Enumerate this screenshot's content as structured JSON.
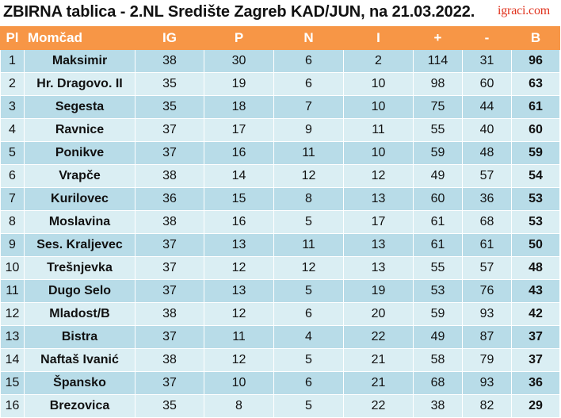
{
  "title": "ZBIRNA tablica - 2.NL Središte Zagreb KAD/JUN, na 21.03.2022.",
  "logo": "igraci.com",
  "columns": [
    "Pl",
    "Momčad",
    "IG",
    "P",
    "N",
    "I",
    "+",
    "-",
    "B"
  ],
  "rows": [
    [
      "1",
      "Maksimir",
      "38",
      "30",
      "6",
      "2",
      "114",
      "31",
      "96"
    ],
    [
      "2",
      "Hr. Dragovo. II",
      "35",
      "19",
      "6",
      "10",
      "98",
      "60",
      "63"
    ],
    [
      "3",
      "Segesta",
      "35",
      "18",
      "7",
      "10",
      "75",
      "44",
      "61"
    ],
    [
      "4",
      "Ravnice",
      "37",
      "17",
      "9",
      "11",
      "55",
      "40",
      "60"
    ],
    [
      "5",
      "Ponikve",
      "37",
      "16",
      "11",
      "10",
      "59",
      "48",
      "59"
    ],
    [
      "6",
      "Vrapče",
      "38",
      "14",
      "12",
      "12",
      "49",
      "57",
      "54"
    ],
    [
      "7",
      "Kurilovec",
      "36",
      "15",
      "8",
      "13",
      "60",
      "36",
      "53"
    ],
    [
      "8",
      "Moslavina",
      "38",
      "16",
      "5",
      "17",
      "61",
      "68",
      "53"
    ],
    [
      "9",
      "Ses. Kraljevec",
      "37",
      "13",
      "11",
      "13",
      "61",
      "61",
      "50"
    ],
    [
      "10",
      "Trešnjevka",
      "37",
      "12",
      "12",
      "13",
      "55",
      "57",
      "48"
    ],
    [
      "11",
      "Dugo Selo",
      "37",
      "13",
      "5",
      "19",
      "53",
      "76",
      "43"
    ],
    [
      "12",
      "Mladost/B",
      "38",
      "12",
      "6",
      "20",
      "59",
      "93",
      "42"
    ],
    [
      "13",
      "Bistra",
      "37",
      "11",
      "4",
      "22",
      "49",
      "87",
      "37"
    ],
    [
      "14",
      "Naftaš Ivanić",
      "38",
      "12",
      "5",
      "21",
      "58",
      "79",
      "37"
    ],
    [
      "15",
      "Špansko",
      "37",
      "10",
      "6",
      "21",
      "68",
      "93",
      "36"
    ],
    [
      "16",
      "Brezovica",
      "35",
      "8",
      "5",
      "22",
      "38",
      "82",
      "29"
    ]
  ],
  "colors": {
    "header_bg": "#f79646",
    "row_odd": "#b8dce8",
    "row_even": "#daeef3",
    "logo": "#e0331e"
  }
}
